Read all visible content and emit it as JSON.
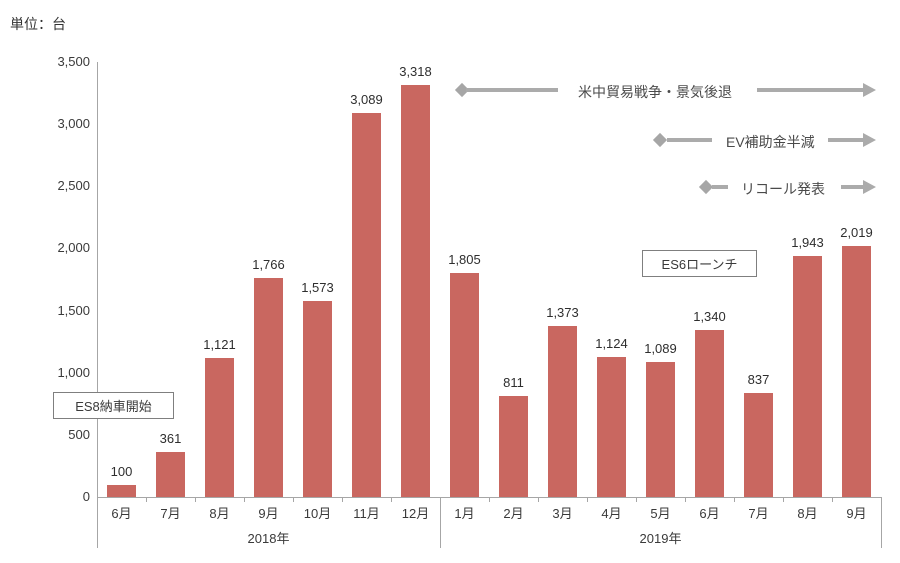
{
  "unit_label": "単位：台",
  "colors": {
    "bar": "#C96760",
    "arrow_gray": "#ababab",
    "axis_gray": "#a6a6a6",
    "text": "#3a3a3a"
  },
  "chart_data": {
    "type": "bar",
    "title": "",
    "ylabel": "単位：台",
    "xlabel": "",
    "ylim": [
      0,
      3500
    ],
    "ytick_step": 500,
    "yticks": [
      {
        "label": "3,500",
        "value": 3500
      },
      {
        "label": "3,000",
        "value": 3000
      },
      {
        "label": "2,500",
        "value": 2500
      },
      {
        "label": "2,000",
        "value": 2000
      },
      {
        "label": "1,500",
        "value": 1500
      },
      {
        "label": "1,000",
        "value": 1000
      },
      {
        "label": "500",
        "value": 500
      },
      {
        "label": "0",
        "value": 0
      }
    ],
    "categories": [
      "6月",
      "7月",
      "8月",
      "9月",
      "10月",
      "11月",
      "12月",
      "1月",
      "2月",
      "3月",
      "4月",
      "5月",
      "6月",
      "7月",
      "8月",
      "9月"
    ],
    "values": [
      100,
      361,
      1121,
      1766,
      1573,
      3089,
      3318,
      1805,
      811,
      1373,
      1124,
      1089,
      1340,
      837,
      1943,
      2019
    ],
    "value_labels": [
      "100",
      "361",
      "1,121",
      "1,766",
      "1,573",
      "3,089",
      "3,318",
      "1,805",
      "811",
      "1,373",
      "1,124",
      "1,089",
      "1,340",
      "837",
      "1,943",
      "2,019"
    ],
    "groups": [
      {
        "label": "2018年",
        "start": 0,
        "count": 7
      },
      {
        "label": "2019年",
        "start": 7,
        "count": 9
      }
    ],
    "grid": false,
    "legend": false
  },
  "annotations": {
    "trade_war": "米中貿易戦争・景気後退",
    "ev_subsidy": "EV補助金半減",
    "recall": "リコール発表",
    "es8_box": "ES8納車開始",
    "es6_box": "ES6ローンチ"
  }
}
